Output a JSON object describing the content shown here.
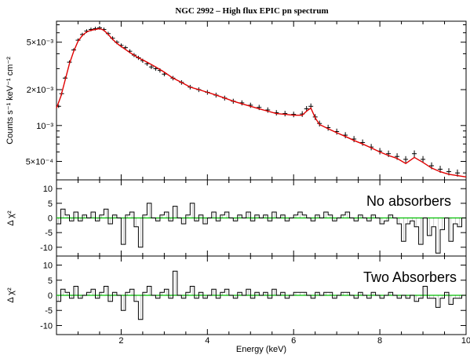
{
  "chart_data": {
    "type": "line",
    "title": "NGC 2992 – High flux EPIC pn spectrum",
    "xlabel": "Energy (keV)",
    "xlim": [
      0.5,
      10
    ],
    "x_ticks": [
      "2",
      "4",
      "6",
      "8",
      "10"
    ],
    "panels": [
      {
        "ylabel": "Counts s⁻¹ keV⁻¹ cm⁻²",
        "yscale": "log",
        "ylim": [
          0.00035,
          0.0075
        ],
        "y_ticks": [
          "5×10⁻³",
          "2×10⁻³",
          "10⁻³",
          "5×10⁻⁴"
        ],
        "series": [
          {
            "style": "data points with error bars",
            "color": "#000000",
            "x": [
              0.55,
              0.62,
              0.7,
              0.8,
              0.9,
              1.0,
              1.1,
              1.2,
              1.3,
              1.4,
              1.5,
              1.6,
              1.7,
              1.8,
              1.9,
              2.0,
              2.1,
              2.2,
              2.3,
              2.4,
              2.5,
              2.6,
              2.7,
              2.8,
              2.9,
              3.0,
              3.2,
              3.4,
              3.6,
              3.8,
              4.0,
              4.2,
              4.4,
              4.6,
              4.8,
              5.0,
              5.2,
              5.4,
              5.6,
              5.8,
              6.0,
              6.2,
              6.3,
              6.4,
              6.5,
              6.6,
              6.8,
              7.0,
              7.2,
              7.4,
              7.6,
              7.8,
              8.0,
              8.2,
              8.4,
              8.6,
              8.8,
              9.0,
              9.2,
              9.4,
              9.6,
              9.8
            ],
            "y": [
              0.00145,
              0.00185,
              0.0025,
              0.0034,
              0.0043,
              0.0052,
              0.0058,
              0.0062,
              0.0064,
              0.0065,
              0.0066,
              0.0064,
              0.0059,
              0.0054,
              0.005,
              0.0047,
              0.0045,
              0.0042,
              0.0039,
              0.0037,
              0.0035,
              0.0033,
              0.0031,
              0.003,
              0.0029,
              0.0027,
              0.0025,
              0.0023,
              0.0021,
              0.002,
              0.0019,
              0.0018,
              0.0017,
              0.0016,
              0.00155,
              0.00148,
              0.00142,
              0.00135,
              0.00128,
              0.00126,
              0.00124,
              0.00125,
              0.00138,
              0.00145,
              0.00118,
              0.00104,
              0.00096,
              0.00089,
              0.00083,
              0.00077,
              0.00072,
              0.00066,
              0.00061,
              0.00058,
              0.00055,
              0.00052,
              0.00058,
              0.00052,
              0.00046,
              0.00043,
              0.00041,
              0.0004
            ]
          },
          {
            "style": "model line",
            "color": "#e00000",
            "x": [
              0.5,
              0.6,
              0.7,
              0.8,
              0.9,
              1.0,
              1.1,
              1.2,
              1.3,
              1.4,
              1.5,
              1.6,
              1.7,
              1.8,
              1.9,
              2.0,
              2.2,
              2.4,
              2.6,
              2.8,
              3.0,
              3.2,
              3.4,
              3.6,
              3.8,
              4.0,
              4.2,
              4.4,
              4.6,
              4.8,
              5.0,
              5.2,
              5.4,
              5.6,
              5.8,
              6.0,
              6.2,
              6.3,
              6.4,
              6.5,
              6.6,
              6.8,
              7.0,
              7.2,
              7.4,
              7.6,
              7.8,
              8.0,
              8.2,
              8.4,
              8.6,
              8.8,
              9.0,
              9.2,
              9.4,
              9.6,
              9.8,
              10.0
            ],
            "y": [
              0.0014,
              0.00175,
              0.0024,
              0.0033,
              0.0042,
              0.0051,
              0.0057,
              0.0061,
              0.0063,
              0.0064,
              0.0065,
              0.0063,
              0.0058,
              0.0053,
              0.0049,
              0.0046,
              0.0041,
              0.0037,
              0.0034,
              0.0031,
              0.0028,
              0.0025,
              0.0023,
              0.0021,
              0.002,
              0.0019,
              0.0018,
              0.0017,
              0.0016,
              0.00152,
              0.00145,
              0.00138,
              0.00132,
              0.00126,
              0.00124,
              0.00122,
              0.00122,
              0.00132,
              0.0014,
              0.00116,
              0.00102,
              0.00094,
              0.00087,
              0.00081,
              0.00075,
              0.0007,
              0.00065,
              0.0006,
              0.00056,
              0.00053,
              0.00048,
              0.00054,
              0.00049,
              0.00044,
              0.00041,
              0.00039,
              0.00038,
              0.00037
            ]
          }
        ]
      },
      {
        "annotation": "No absorbers",
        "ylabel": "Δ χ²",
        "ylim": [
          -13,
          13
        ],
        "y_ticks": [
          "10",
          "5",
          "0",
          "-5",
          "-10"
        ],
        "series": [
          {
            "style": "residual histogram",
            "color": "#000000",
            "x": [
              0.55,
              0.65,
              0.75,
              0.85,
              0.95,
              1.05,
              1.15,
              1.25,
              1.35,
              1.45,
              1.55,
              1.65,
              1.75,
              1.85,
              1.95,
              2.05,
              2.15,
              2.25,
              2.35,
              2.45,
              2.55,
              2.65,
              2.75,
              2.85,
              2.95,
              3.05,
              3.15,
              3.25,
              3.35,
              3.45,
              3.55,
              3.65,
              3.75,
              3.85,
              3.95,
              4.05,
              4.15,
              4.25,
              4.35,
              4.45,
              4.55,
              4.65,
              4.75,
              4.85,
              4.95,
              5.05,
              5.15,
              5.25,
              5.35,
              5.45,
              5.55,
              5.65,
              5.75,
              5.85,
              5.95,
              6.05,
              6.15,
              6.25,
              6.35,
              6.45,
              6.55,
              6.65,
              6.75,
              6.85,
              6.95,
              7.05,
              7.15,
              7.25,
              7.35,
              7.45,
              7.55,
              7.65,
              7.75,
              7.85,
              7.95,
              8.05,
              8.15,
              8.25,
              8.35,
              8.45,
              8.55,
              8.65,
              8.75,
              8.85,
              8.95,
              9.05,
              9.15,
              9.25,
              9.35,
              9.45,
              9.55,
              9.65,
              9.75,
              9.85,
              9.95
            ],
            "y": [
              -2,
              3,
              1,
              -1,
              2,
              -1,
              1,
              0,
              2,
              -1,
              1,
              3,
              -2,
              1,
              0,
              -9,
              1,
              2,
              -3,
              -10,
              1,
              5,
              0,
              -1,
              1,
              2,
              -1,
              4,
              0,
              -2,
              1,
              5,
              -1,
              1,
              -2,
              0,
              2,
              -1,
              1,
              2,
              0,
              -1,
              1,
              0,
              2,
              -1,
              1,
              0,
              1,
              -1,
              2,
              0,
              1,
              -1,
              0,
              1,
              2,
              1,
              0,
              -1,
              1,
              0,
              2,
              1,
              -1,
              0,
              1,
              2,
              0,
              -1,
              1,
              0,
              -1,
              1,
              0,
              -2,
              -1,
              1,
              0,
              -2,
              -8,
              -2,
              -1,
              -3,
              -9,
              0,
              -6,
              -3,
              -12,
              -4,
              0,
              -8,
              -2,
              -3,
              0
            ]
          },
          {
            "style": "zero line",
            "color": "#00c000",
            "x": [
              0.5,
              10
            ],
            "y": [
              0,
              0
            ]
          }
        ]
      },
      {
        "annotation": "Two Absorbers",
        "ylabel": "Δ χ²",
        "ylim": [
          -13,
          13
        ],
        "y_ticks": [
          "10",
          "5",
          "0",
          "-5",
          "-10"
        ],
        "series": [
          {
            "style": "residual histogram",
            "color": "#000000",
            "x": [
              0.55,
              0.65,
              0.75,
              0.85,
              0.95,
              1.05,
              1.15,
              1.25,
              1.35,
              1.45,
              1.55,
              1.65,
              1.75,
              1.85,
              1.95,
              2.05,
              2.15,
              2.25,
              2.35,
              2.45,
              2.55,
              2.65,
              2.75,
              2.85,
              2.95,
              3.05,
              3.15,
              3.25,
              3.35,
              3.45,
              3.55,
              3.65,
              3.75,
              3.85,
              3.95,
              4.05,
              4.15,
              4.25,
              4.35,
              4.45,
              4.55,
              4.65,
              4.75,
              4.85,
              4.95,
              5.05,
              5.15,
              5.25,
              5.35,
              5.45,
              5.55,
              5.65,
              5.75,
              5.85,
              5.95,
              6.05,
              6.15,
              6.25,
              6.35,
              6.45,
              6.55,
              6.65,
              6.75,
              6.85,
              6.95,
              7.05,
              7.15,
              7.25,
              7.35,
              7.45,
              7.55,
              7.65,
              7.75,
              7.85,
              7.95,
              8.05,
              8.15,
              8.25,
              8.35,
              8.45,
              8.55,
              8.65,
              8.75,
              8.85,
              8.95,
              9.05,
              9.15,
              9.25,
              9.35,
              9.45,
              9.55,
              9.65,
              9.75,
              9.85,
              9.95
            ],
            "y": [
              -2,
              2,
              1,
              -1,
              3,
              -1,
              0,
              1,
              2,
              -1,
              1,
              3,
              -2,
              1,
              0,
              -5,
              1,
              2,
              -2,
              -8,
              1,
              3,
              0,
              -1,
              1,
              2,
              -1,
              8,
              0,
              -1,
              1,
              3,
              -1,
              1,
              -1,
              0,
              2,
              -1,
              1,
              2,
              0,
              -1,
              1,
              0,
              2,
              -1,
              1,
              0,
              1,
              -1,
              2,
              0,
              1,
              -1,
              0,
              1,
              1,
              1,
              0,
              -1,
              1,
              0,
              1,
              1,
              -1,
              0,
              1,
              1,
              0,
              -1,
              1,
              0,
              -1,
              1,
              0,
              -1,
              0,
              1,
              0,
              -1,
              0,
              -1,
              0,
              -2,
              -1,
              3,
              -1,
              -1,
              -4,
              -1,
              1,
              -3,
              -1,
              -1,
              0
            ]
          },
          {
            "style": "zero line",
            "color": "#00c000",
            "x": [
              0.5,
              10
            ],
            "y": [
              0,
              0
            ]
          }
        ]
      }
    ]
  }
}
